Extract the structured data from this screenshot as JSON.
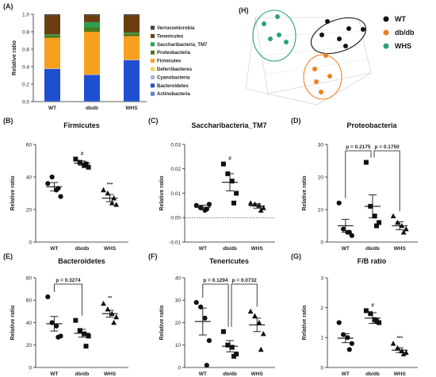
{
  "colors": {
    "Verrucomicrobia": "#404040",
    "Tenericutes": "#6b3e10",
    "Saccharibacteria_TM7": "#2e9e50",
    "Proteobacteria": "#4a7a1e",
    "Firmicutes": "#f7a01e",
    "Deferribacteres": "#f2d14a",
    "Cyanobacteria": "#9fb6d6",
    "Bacteroidetes": "#1f4fd1",
    "Actinobacteria": "#5b84c4",
    "WT": "#111111",
    "db/db": "#f07f1f",
    "WHS": "#28a374"
  },
  "chart_data": [
    {
      "id": "A",
      "panel_label": "(A)",
      "type": "bar",
      "stacked": true,
      "categories": [
        "WT",
        "dbdb",
        "WHS"
      ],
      "ylabel": "Relative ratio",
      "ylim": [
        0,
        1
      ],
      "yticks": [
        "0.0",
        "0.2",
        "0.4",
        "0.6",
        "0.8",
        "1.0"
      ],
      "legend_position": "right",
      "legend": [
        "Verrucomicrobia",
        "Tenericutes",
        "Saccharibacteria_TM7",
        "Proteobacteria",
        "Firmicutes",
        "Deferribacteres",
        "Cyanobacteria",
        "Bacteroidetes",
        "Actinobacteria"
      ],
      "series": [
        {
          "name": "Actinobacteria",
          "values": [
            0.005,
            0.005,
            0.005
          ]
        },
        {
          "name": "Bacteroidetes",
          "values": [
            0.37,
            0.3,
            0.47
          ]
        },
        {
          "name": "Cyanobacteria",
          "values": [
            0.003,
            0.003,
            0.003
          ]
        },
        {
          "name": "Deferribacteres",
          "values": [
            0.002,
            0.002,
            0.002
          ]
        },
        {
          "name": "Firmicutes",
          "values": [
            0.35,
            0.49,
            0.27
          ]
        },
        {
          "name": "Proteobacteria",
          "values": [
            0.03,
            0.05,
            0.03
          ]
        },
        {
          "name": "Saccharibacteria_TM7",
          "values": [
            0.01,
            0.06,
            0.01
          ]
        },
        {
          "name": "Tenericutes",
          "values": [
            0.22,
            0.08,
            0.2
          ]
        },
        {
          "name": "Verrucomicrobia",
          "values": [
            0.01,
            0.01,
            0.01
          ]
        }
      ]
    },
    {
      "id": "H",
      "panel_label": "(H)",
      "type": "scatter",
      "projection": "3d",
      "legend": [
        "WT",
        "db/db",
        "WHS"
      ],
      "legend_position": "right",
      "groups": [
        {
          "name": "WT",
          "points": [
            [
              -0.05,
              0.05,
              0.05
            ],
            [
              0.05,
              0.1,
              0.05
            ],
            [
              0.1,
              0.1,
              0.0
            ],
            [
              0.2,
              0.05,
              0.1
            ],
            [
              0.05,
              0.0,
              0.02
            ],
            [
              0.15,
              0.12,
              0.05
            ]
          ]
        },
        {
          "name": "db/db",
          "points": [
            [
              0.15,
              -0.15,
              0.0
            ],
            [
              0.12,
              -0.05,
              -0.1
            ],
            [
              0.18,
              -0.1,
              -0.08
            ],
            [
              0.16,
              -0.2,
              -0.15
            ],
            [
              0.1,
              -0.12,
              -0.05
            ]
          ]
        },
        {
          "name": "WHS",
          "points": [
            [
              -0.2,
              0.15,
              0.1
            ],
            [
              -0.25,
              0.1,
              0.15
            ],
            [
              -0.15,
              0.2,
              0.1
            ],
            [
              -0.2,
              0.05,
              0.05
            ],
            [
              -0.3,
              0.12,
              0.2
            ]
          ]
        }
      ]
    },
    {
      "id": "B",
      "panel_label": "(B)",
      "type": "scatter",
      "title": "Firmicutes",
      "ylabel": "Relative ratio",
      "ylim": [
        0,
        60
      ],
      "yticks": [
        0,
        20,
        40,
        60
      ],
      "categories": [
        "WT",
        "db/db",
        "WHS"
      ],
      "groups": [
        {
          "name": "WT",
          "marker": "circle",
          "points": [
            36,
            40,
            32,
            28,
            33
          ],
          "mean": 34,
          "sem": 2.6
        },
        {
          "name": "db/db",
          "marker": "square",
          "points": [
            51,
            49,
            47,
            46,
            48
          ],
          "mean": 48.5,
          "sem": 1.3
        },
        {
          "name": "WHS",
          "marker": "triangle",
          "points": [
            32,
            30,
            24,
            23,
            27
          ],
          "mean": 27,
          "sem": 2.2
        }
      ],
      "annotations": [
        {
          "group": "db/db",
          "text": "#"
        },
        {
          "group": "WHS",
          "text": "***"
        }
      ]
    },
    {
      "id": "C",
      "panel_label": "(C)",
      "type": "scatter",
      "title": "Saccharibacteria_TM7",
      "ylabel": "Relative ratio",
      "ylim": [
        -0.01,
        0.03
      ],
      "yticks": [
        "-0.01",
        "0.00",
        "0.01",
        "0.02",
        "0.03"
      ],
      "reference_line": 0,
      "categories": [
        "WT",
        "db/db",
        "WHS"
      ],
      "groups": [
        {
          "name": "WT",
          "marker": "circle",
          "points": [
            0.005,
            0.004,
            0.003,
            0.0055,
            0.0035
          ],
          "mean": 0.0043,
          "sem": 0.0008
        },
        {
          "name": "db/db",
          "marker": "square",
          "points": [
            0.022,
            0.018,
            0.015,
            0.01,
            0.006
          ],
          "mean": 0.0145,
          "sem": 0.0035
        },
        {
          "name": "WHS",
          "marker": "triangle",
          "points": [
            0.006,
            0.0055,
            0.005,
            0.004,
            0.003
          ],
          "mean": 0.0048,
          "sem": 0.0009
        }
      ],
      "annotations": [
        {
          "group": "db/db",
          "text": "#"
        }
      ]
    },
    {
      "id": "D",
      "panel_label": "(D)",
      "type": "scatter",
      "title": "Proteobacteria",
      "ylabel": "Relative ratio",
      "ylim": [
        0,
        30
      ],
      "yticks": [
        0,
        10,
        20,
        30
      ],
      "categories": [
        "WT",
        "db/db",
        "WHS"
      ],
      "groups": [
        {
          "name": "WT",
          "marker": "circle",
          "points": [
            12,
            4,
            3,
            2,
            3
          ],
          "mean": 5,
          "sem": 2
        },
        {
          "name": "db/db",
          "marker": "square",
          "points": [
            24.5,
            11,
            8,
            6,
            5
          ],
          "mean": 11,
          "sem": 3.5
        },
        {
          "name": "WHS",
          "marker": "triangle",
          "points": [
            8,
            6,
            5,
            4,
            3
          ],
          "mean": 5,
          "sem": 1.2
        }
      ],
      "comparisons": [
        {
          "from": "WT",
          "to": "db/db",
          "text": "p = 0.2175"
        },
        {
          "from": "db/db",
          "to": "WHS",
          "text": "p = 0.1750"
        }
      ]
    },
    {
      "id": "E",
      "panel_label": "(E)",
      "type": "scatter",
      "title": "Bacteroidetes",
      "ylabel": "Relative ratio",
      "ylim": [
        0,
        80
      ],
      "yticks": [
        0,
        20,
        40,
        60,
        80
      ],
      "categories": [
        "WT",
        "db/db",
        "WHS"
      ],
      "groups": [
        {
          "name": "WT",
          "marker": "circle",
          "points": [
            63,
            40,
            37,
            28,
            27
          ],
          "mean": 39,
          "sem": 6.5
        },
        {
          "name": "db/db",
          "marker": "square",
          "points": [
            42,
            33,
            30,
            28,
            19
          ],
          "mean": 30.5,
          "sem": 3.5
        },
        {
          "name": "WHS",
          "marker": "triangle",
          "points": [
            57,
            52,
            48,
            45,
            40
          ],
          "mean": 48,
          "sem": 3
        }
      ],
      "annotations": [
        {
          "group": "WHS",
          "text": "**"
        }
      ],
      "comparisons": [
        {
          "from": "WT",
          "to": "db/db",
          "text": "p = 0.3274"
        }
      ]
    },
    {
      "id": "F",
      "panel_label": "(F)",
      "type": "scatter",
      "title": "Tenericutes",
      "ylabel": "Relative ratio",
      "ylim": [
        0,
        40
      ],
      "yticks": [
        0,
        10,
        20,
        30,
        40
      ],
      "categories": [
        "WT",
        "db/db",
        "WHS"
      ],
      "groups": [
        {
          "name": "WT",
          "marker": "circle",
          "points": [
            29,
            27,
            22,
            12,
            1
          ],
          "mean": 20.5,
          "sem": 6
        },
        {
          "name": "db/db",
          "marker": "square",
          "points": [
            16,
            10,
            9,
            6,
            5
          ],
          "mean": 9.5,
          "sem": 2.5
        },
        {
          "name": "WHS",
          "marker": "triangle",
          "points": [
            25,
            23,
            20,
            15,
            8
          ],
          "mean": 19,
          "sem": 3
        }
      ],
      "comparisons": [
        {
          "from": "WT",
          "to": "db/db",
          "text": "p = 0.1294"
        },
        {
          "from": "db/db",
          "to": "WHS",
          "text": "p = 0.0732"
        }
      ]
    },
    {
      "id": "G",
      "panel_label": "(G)",
      "type": "scatter",
      "title": "F/B ratio",
      "ylabel": "Relative ratio",
      "ylim": [
        0,
        3
      ],
      "yticks": [
        0,
        1,
        2,
        3
      ],
      "categories": [
        "WT",
        "db/db",
        "WHS"
      ],
      "groups": [
        {
          "name": "WT",
          "marker": "circle",
          "points": [
            1.5,
            1.1,
            1.0,
            0.8,
            0.6
          ],
          "mean": 0.98,
          "sem": 0.15
        },
        {
          "name": "db/db",
          "marker": "square",
          "points": [
            1.9,
            1.8,
            1.6,
            1.5,
            1.55
          ],
          "mean": 1.65,
          "sem": 0.18
        },
        {
          "name": "WHS",
          "marker": "triangle",
          "points": [
            0.8,
            0.65,
            0.55,
            0.5,
            0.45
          ],
          "mean": 0.58,
          "sem": 0.08
        }
      ],
      "annotations": [
        {
          "group": "db/db",
          "text": "#"
        },
        {
          "group": "WHS",
          "text": "***"
        }
      ]
    }
  ]
}
